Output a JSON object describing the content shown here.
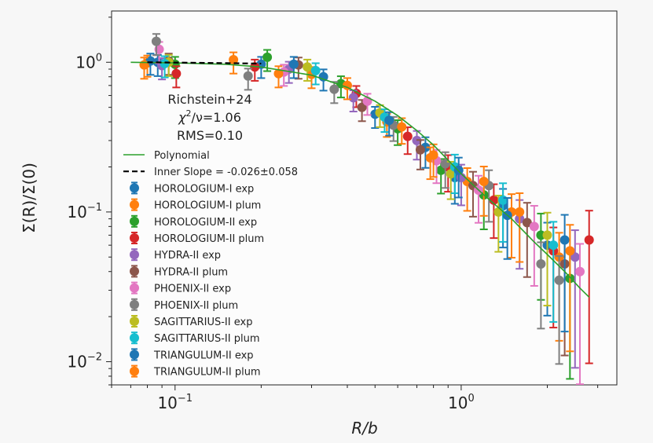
{
  "chart_data": {
    "type": "scatter",
    "xscale": "log",
    "yscale": "log",
    "xlim": [
      0.06,
      3.5
    ],
    "ylim": [
      0.007,
      2.2
    ],
    "xlabel": "R/b",
    "ylabel": "Σ(R)/Σ(0)",
    "x_ticks": [
      {
        "value": 0.1,
        "base": "10",
        "exp": "−1"
      },
      {
        "value": 1,
        "base": "10",
        "exp": "0"
      }
    ],
    "y_ticks": [
      {
        "value": 1,
        "base": "10",
        "exp": "0"
      },
      {
        "value": 0.1,
        "base": "10",
        "exp": "−1"
      },
      {
        "value": 0.01,
        "base": "10",
        "exp": "−2"
      }
    ],
    "annotation": {
      "line1": "Richstein+24",
      "chi_symbol": "χ",
      "chi_sup": "2",
      "chi_rest": "/ν=1.06",
      "line3": "RMS=0.10"
    },
    "legend_placement": "left",
    "model_curve": {
      "name": "Polynomial",
      "color": "#2ca02c",
      "x": [
        0.07,
        0.1,
        0.15,
        0.2,
        0.3,
        0.4,
        0.5,
        0.6,
        0.7,
        0.8,
        1.0,
        1.2,
        1.5,
        1.8,
        2.0,
        2.3,
        2.6,
        2.8
      ],
      "y": [
        1.0,
        0.99,
        0.97,
        0.93,
        0.82,
        0.68,
        0.55,
        0.44,
        0.35,
        0.28,
        0.18,
        0.13,
        0.09,
        0.063,
        0.052,
        0.04,
        0.031,
        0.027
      ]
    },
    "inner_slope": {
      "name": "Inner Slope = -0.026±0.058",
      "color": "#000000",
      "x": [
        0.08,
        0.2
      ],
      "y": [
        1.0,
        0.98
      ]
    },
    "series": [
      {
        "name": "HOROLOGIUM-I exp",
        "color": "#1f77b4",
        "points": [
          [
            0.087,
            1.0
          ],
          [
            0.2,
            0.97
          ],
          [
            0.33,
            0.8
          ],
          [
            0.5,
            0.45
          ],
          [
            0.75,
            0.27
          ],
          [
            0.95,
            0.17
          ],
          [
            1.4,
            0.11
          ],
          [
            2.0,
            0.06
          ]
        ]
      },
      {
        "name": "HOROLOGIUM-I plum",
        "color": "#ff7f0e",
        "points": [
          [
            0.08,
            0.99
          ],
          [
            0.16,
            1.04
          ],
          [
            0.3,
            0.83
          ],
          [
            0.55,
            0.4
          ],
          [
            0.78,
            0.23
          ],
          [
            1.05,
            0.16
          ],
          [
            1.5,
            0.1
          ],
          [
            2.2,
            0.05
          ]
        ]
      },
      {
        "name": "HOROLOGIUM-II exp",
        "color": "#2ca02c",
        "points": [
          [
            0.1,
            0.97
          ],
          [
            0.21,
            1.08
          ],
          [
            0.38,
            0.72
          ],
          [
            0.6,
            0.36
          ],
          [
            0.85,
            0.19
          ],
          [
            1.2,
            0.13
          ],
          [
            1.9,
            0.07
          ],
          [
            2.4,
            0.036
          ]
        ]
      },
      {
        "name": "HOROLOGIUM-II plum",
        "color": "#d62728",
        "points": [
          [
            0.101,
            0.84
          ],
          [
            0.19,
            0.93
          ],
          [
            0.43,
            0.62
          ],
          [
            0.65,
            0.32
          ],
          [
            0.9,
            0.2
          ],
          [
            1.3,
            0.12
          ],
          [
            2.1,
            0.055
          ],
          [
            2.8,
            0.065
          ]
        ]
      },
      {
        "name": "HYDRA-II exp",
        "color": "#9467bd",
        "points": [
          [
            0.09,
            0.95
          ],
          [
            0.25,
            0.9
          ],
          [
            0.42,
            0.58
          ],
          [
            0.7,
            0.3
          ],
          [
            1.0,
            0.17
          ],
          [
            1.6,
            0.09
          ],
          [
            2.5,
            0.05
          ]
        ]
      },
      {
        "name": "HYDRA-II plum",
        "color": "#8c564b",
        "points": [
          [
            0.095,
            1.02
          ],
          [
            0.27,
            0.96
          ],
          [
            0.45,
            0.5
          ],
          [
            0.72,
            0.26
          ],
          [
            1.1,
            0.15
          ],
          [
            1.7,
            0.085
          ],
          [
            2.3,
            0.045
          ]
        ]
      },
      {
        "name": "PHOENIX-II exp",
        "color": "#e377c2",
        "points": [
          [
            0.088,
            1.22
          ],
          [
            0.24,
            0.86
          ],
          [
            0.47,
            0.55
          ],
          [
            0.82,
            0.22
          ],
          [
            1.15,
            0.14
          ],
          [
            1.8,
            0.08
          ],
          [
            2.6,
            0.04
          ]
        ]
      },
      {
        "name": "PHOENIX-II plum",
        "color": "#7f7f7f",
        "points": [
          [
            0.086,
            1.38
          ],
          [
            0.18,
            0.81
          ],
          [
            0.36,
            0.66
          ],
          [
            0.58,
            0.38
          ],
          [
            0.88,
            0.21
          ],
          [
            1.25,
            0.15
          ],
          [
            1.9,
            0.045
          ],
          [
            2.2,
            0.035
          ]
        ]
      },
      {
        "name": "SAGITTARIUS-II exp",
        "color": "#bcbd22",
        "points": [
          [
            0.095,
            1.0
          ],
          [
            0.29,
            0.93
          ],
          [
            0.52,
            0.46
          ],
          [
            0.92,
            0.18
          ],
          [
            1.35,
            0.1
          ],
          [
            2.0,
            0.07
          ]
        ]
      },
      {
        "name": "SAGITTARIUS-II plum",
        "color": "#17becf",
        "points": [
          [
            0.092,
            0.98
          ],
          [
            0.31,
            0.88
          ],
          [
            0.54,
            0.43
          ],
          [
            0.95,
            0.2
          ],
          [
            1.4,
            0.12
          ],
          [
            2.1,
            0.06
          ]
        ]
      },
      {
        "name": "TRIANGULUM-II exp",
        "color": "#1f77b4",
        "points": [
          [
            0.082,
            1.02
          ],
          [
            0.26,
            0.97
          ],
          [
            0.56,
            0.41
          ],
          [
            0.98,
            0.19
          ],
          [
            1.45,
            0.095
          ],
          [
            2.3,
            0.065
          ]
        ]
      },
      {
        "name": "TRIANGULUM-II plum",
        "color": "#ff7f0e",
        "points": [
          [
            0.078,
            0.96
          ],
          [
            0.23,
            0.84
          ],
          [
            0.4,
            0.7
          ],
          [
            0.62,
            0.37
          ],
          [
            0.8,
            0.24
          ],
          [
            1.2,
            0.16
          ],
          [
            1.6,
            0.1
          ],
          [
            2.4,
            0.055
          ]
        ]
      }
    ]
  }
}
